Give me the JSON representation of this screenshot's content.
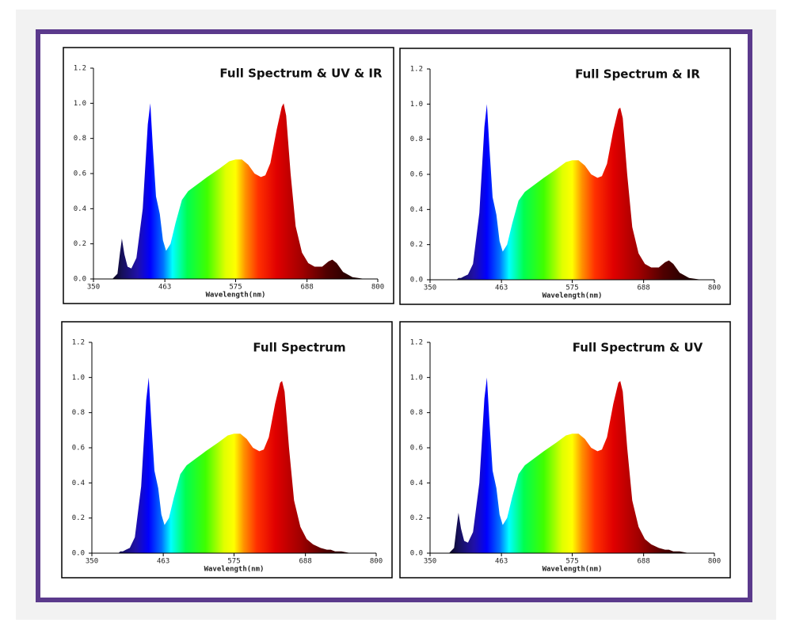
{
  "chart_data": [
    {
      "type": "area",
      "title": "Full Spectrum & UV & IR",
      "xlabel": "Wavelength(nm)",
      "x": [
        350,
        380,
        388,
        392,
        395,
        399,
        404,
        410,
        418,
        428,
        436,
        440,
        444,
        449,
        455,
        460,
        465,
        472,
        480,
        490,
        500,
        515,
        530,
        550,
        565,
        575,
        585,
        595,
        605,
        615,
        622,
        630,
        640,
        648,
        651,
        655,
        662,
        670,
        680,
        690,
        700,
        712,
        722,
        728,
        735,
        745,
        760,
        780,
        800
      ],
      "values": [
        0,
        0,
        0.03,
        0.15,
        0.23,
        0.14,
        0.07,
        0.06,
        0.12,
        0.4,
        0.88,
        1.0,
        0.75,
        0.47,
        0.37,
        0.22,
        0.16,
        0.2,
        0.32,
        0.45,
        0.5,
        0.54,
        0.58,
        0.63,
        0.67,
        0.68,
        0.68,
        0.65,
        0.6,
        0.58,
        0.59,
        0.66,
        0.85,
        0.98,
        1.0,
        0.93,
        0.6,
        0.3,
        0.15,
        0.09,
        0.07,
        0.07,
        0.1,
        0.11,
        0.09,
        0.04,
        0.01,
        0,
        0
      ],
      "xlim": [
        350,
        800
      ],
      "xticks": [
        350,
        463,
        575,
        688,
        800
      ],
      "ylim": [
        0,
        1.2
      ],
      "yticks": [
        {
          "value": 0,
          "label": "0.0"
        },
        {
          "value": 0.2,
          "label": "0.2"
        },
        {
          "value": 0.4,
          "label": "0.4"
        },
        {
          "value": 0.6,
          "label": "0.6"
        },
        {
          "value": 0.8,
          "label": "0.8"
        },
        {
          "value": 1,
          "label": "1.0"
        },
        {
          "value": 1.2,
          "label": "1.2"
        }
      ]
    },
    {
      "type": "area",
      "title": "Full Spectrum & IR",
      "xlabel": "Wavelength(nm)",
      "x": [
        350,
        380,
        388,
        392,
        395,
        399,
        404,
        410,
        418,
        428,
        436,
        440,
        444,
        449,
        455,
        460,
        465,
        472,
        480,
        490,
        500,
        515,
        530,
        550,
        565,
        575,
        585,
        595,
        605,
        615,
        622,
        630,
        640,
        648,
        651,
        655,
        662,
        670,
        680,
        690,
        700,
        712,
        722,
        728,
        735,
        745,
        760,
        780,
        800
      ],
      "values": [
        0,
        0,
        0,
        0,
        0.01,
        0.01,
        0.02,
        0.03,
        0.09,
        0.38,
        0.87,
        1.0,
        0.75,
        0.47,
        0.37,
        0.22,
        0.16,
        0.2,
        0.32,
        0.45,
        0.5,
        0.54,
        0.58,
        0.63,
        0.67,
        0.68,
        0.68,
        0.65,
        0.6,
        0.58,
        0.59,
        0.66,
        0.85,
        0.97,
        0.98,
        0.92,
        0.6,
        0.3,
        0.15,
        0.09,
        0.07,
        0.07,
        0.1,
        0.11,
        0.09,
        0.04,
        0.01,
        0,
        0
      ],
      "xlim": [
        350,
        800
      ],
      "xticks": [
        350,
        463,
        575,
        688,
        800
      ],
      "ylim": [
        0,
        1.2
      ],
      "yticks": [
        {
          "value": 0,
          "label": "0.0"
        },
        {
          "value": 0.2,
          "label": "0.2"
        },
        {
          "value": 0.4,
          "label": "0.4"
        },
        {
          "value": 0.6,
          "label": "0.6"
        },
        {
          "value": 0.8,
          "label": "0.8"
        },
        {
          "value": 1,
          "label": "1.0"
        },
        {
          "value": 1.2,
          "label": "1.2"
        }
      ]
    },
    {
      "type": "area",
      "title": "Full Spectrum",
      "xlabel": "Wavelength(nm)",
      "x": [
        350,
        380,
        388,
        392,
        395,
        399,
        404,
        410,
        418,
        428,
        436,
        440,
        444,
        449,
        455,
        460,
        465,
        472,
        480,
        490,
        500,
        515,
        530,
        550,
        565,
        575,
        585,
        595,
        605,
        615,
        622,
        630,
        640,
        648,
        651,
        655,
        662,
        670,
        680,
        690,
        700,
        712,
        722,
        728,
        735,
        745,
        760,
        780,
        800
      ],
      "values": [
        0,
        0,
        0,
        0,
        0.01,
        0.01,
        0.02,
        0.03,
        0.09,
        0.38,
        0.87,
        1.0,
        0.75,
        0.47,
        0.37,
        0.22,
        0.16,
        0.2,
        0.32,
        0.45,
        0.5,
        0.54,
        0.58,
        0.63,
        0.67,
        0.68,
        0.68,
        0.65,
        0.6,
        0.58,
        0.59,
        0.66,
        0.85,
        0.97,
        0.98,
        0.92,
        0.6,
        0.3,
        0.15,
        0.08,
        0.05,
        0.03,
        0.02,
        0.02,
        0.01,
        0.01,
        0,
        0,
        0
      ],
      "xlim": [
        350,
        800
      ],
      "xticks": [
        350,
        463,
        575,
        688,
        800
      ],
      "ylim": [
        0,
        1.2
      ],
      "yticks": [
        {
          "value": 0,
          "label": "0.0"
        },
        {
          "value": 0.2,
          "label": "0.2"
        },
        {
          "value": 0.4,
          "label": "0.4"
        },
        {
          "value": 0.6,
          "label": "0.6"
        },
        {
          "value": 0.8,
          "label": "0.8"
        },
        {
          "value": 1,
          "label": "1.0"
        },
        {
          "value": 1.2,
          "label": "1.2"
        }
      ]
    },
    {
      "type": "area",
      "title": "Full Spectrum & UV",
      "xlabel": "Wavelength(nm)",
      "x": [
        350,
        380,
        388,
        392,
        395,
        399,
        404,
        410,
        418,
        428,
        436,
        440,
        444,
        449,
        455,
        460,
        465,
        472,
        480,
        490,
        500,
        515,
        530,
        550,
        565,
        575,
        585,
        595,
        605,
        615,
        622,
        630,
        640,
        648,
        651,
        655,
        662,
        670,
        680,
        690,
        700,
        712,
        722,
        728,
        735,
        745,
        760,
        780,
        800
      ],
      "values": [
        0,
        0,
        0.03,
        0.15,
        0.23,
        0.14,
        0.07,
        0.06,
        0.12,
        0.4,
        0.88,
        1.0,
        0.75,
        0.47,
        0.37,
        0.22,
        0.16,
        0.2,
        0.32,
        0.45,
        0.5,
        0.54,
        0.58,
        0.63,
        0.67,
        0.68,
        0.68,
        0.65,
        0.6,
        0.58,
        0.59,
        0.66,
        0.85,
        0.97,
        0.98,
        0.92,
        0.6,
        0.3,
        0.15,
        0.08,
        0.05,
        0.03,
        0.02,
        0.02,
        0.01,
        0.01,
        0,
        0,
        0
      ],
      "xlim": [
        350,
        800
      ],
      "xticks": [
        350,
        463,
        575,
        688,
        800
      ],
      "ylim": [
        0,
        1.2
      ],
      "yticks": [
        {
          "value": 0,
          "label": "0.0"
        },
        {
          "value": 0.2,
          "label": "0.2"
        },
        {
          "value": 0.4,
          "label": "0.4"
        },
        {
          "value": 0.6,
          "label": "0.6"
        },
        {
          "value": 0.8,
          "label": "0.8"
        },
        {
          "value": 1,
          "label": "1.0"
        },
        {
          "value": 1.2,
          "label": "1.2"
        }
      ]
    }
  ]
}
